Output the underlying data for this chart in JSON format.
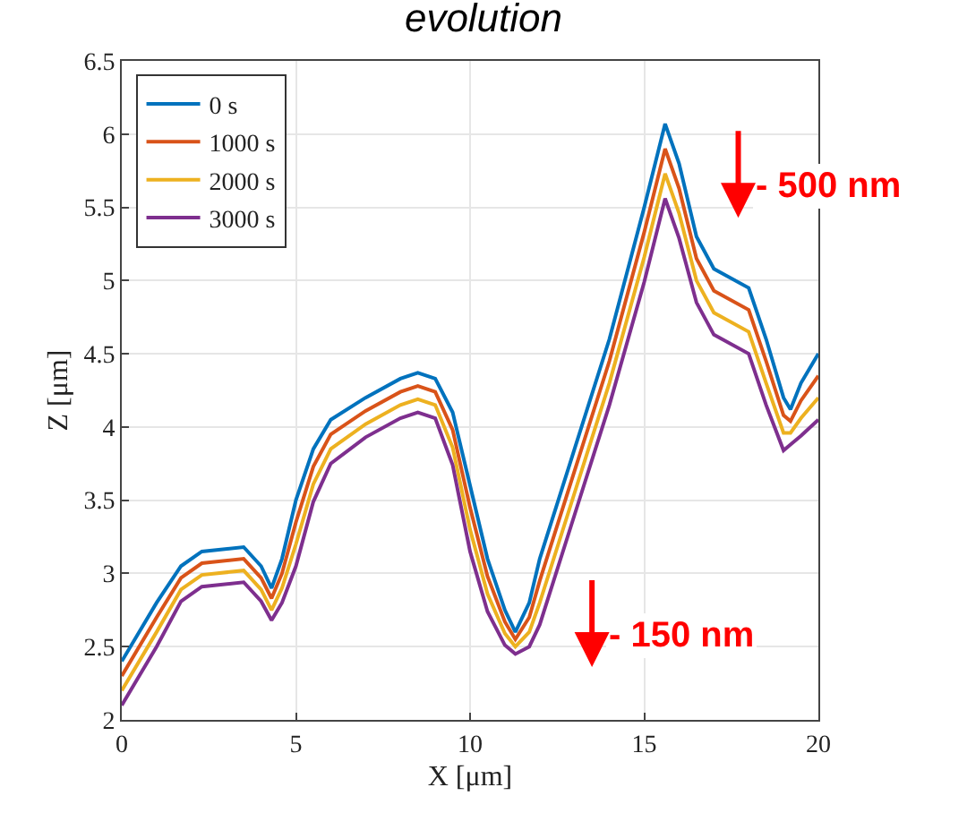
{
  "chart_data": {
    "type": "line",
    "title": "evolution",
    "xlabel": "X [μm]",
    "ylabel": "Z [μm]",
    "x": [
      0,
      1,
      1.7,
      2.3,
      3.5,
      4,
      4.3,
      4.6,
      5,
      5.5,
      6,
      7,
      8,
      8.5,
      9,
      9.5,
      10,
      10.5,
      11,
      11.3,
      11.7,
      12,
      13,
      14,
      15,
      15.6,
      16,
      16.5,
      17,
      18,
      18.5,
      19,
      19.2,
      19.5,
      20
    ],
    "series": [
      {
        "name": "0 s",
        "color": "#0072bd",
        "values": [
          2.4,
          2.8,
          3.05,
          3.15,
          3.18,
          3.05,
          2.9,
          3.1,
          3.5,
          3.85,
          4.05,
          4.2,
          4.33,
          4.37,
          4.33,
          4.1,
          3.6,
          3.1,
          2.75,
          2.6,
          2.8,
          3.1,
          3.85,
          4.6,
          5.5,
          6.07,
          5.8,
          5.3,
          5.08,
          4.95,
          4.6,
          4.2,
          4.12,
          4.3,
          4.5
        ]
      },
      {
        "name": "1000 s",
        "color": "#d95319",
        "values": [
          2.3,
          2.7,
          2.97,
          3.07,
          3.1,
          2.97,
          2.83,
          3.0,
          3.35,
          3.73,
          3.95,
          4.11,
          4.24,
          4.28,
          4.24,
          3.98,
          3.45,
          2.98,
          2.67,
          2.55,
          2.7,
          2.95,
          3.7,
          4.45,
          5.33,
          5.9,
          5.63,
          5.15,
          4.93,
          4.8,
          4.45,
          4.08,
          4.04,
          4.18,
          4.35
        ]
      },
      {
        "name": "2000 s",
        "color": "#edb120",
        "values": [
          2.2,
          2.6,
          2.89,
          2.99,
          3.02,
          2.89,
          2.75,
          2.9,
          3.2,
          3.61,
          3.85,
          4.02,
          4.15,
          4.19,
          4.15,
          3.86,
          3.3,
          2.86,
          2.59,
          2.5,
          2.6,
          2.8,
          3.55,
          4.3,
          5.16,
          5.73,
          5.46,
          5.0,
          4.78,
          4.65,
          4.3,
          3.96,
          3.96,
          4.06,
          4.2
        ]
      },
      {
        "name": "3000 s",
        "color": "#7e2f8e",
        "values": [
          2.1,
          2.5,
          2.81,
          2.91,
          2.94,
          2.81,
          2.68,
          2.8,
          3.05,
          3.49,
          3.75,
          3.93,
          4.06,
          4.1,
          4.06,
          3.74,
          3.15,
          2.74,
          2.51,
          2.45,
          2.5,
          2.65,
          3.4,
          4.15,
          4.99,
          5.56,
          5.29,
          4.85,
          4.63,
          4.5,
          4.15,
          3.84,
          3.88,
          3.94,
          4.05
        ]
      }
    ],
    "xlim": [
      0,
      20
    ],
    "xticks": [
      0,
      5,
      10,
      15,
      20
    ],
    "ylim": [
      2,
      6.5
    ],
    "yticks": [
      2,
      2.5,
      3,
      3.5,
      4,
      4.5,
      5,
      5.5,
      6,
      6.5
    ],
    "annotations": [
      "- 500 nm",
      "- 150 nm"
    ],
    "grid": true,
    "legend": "top left",
    "marker": "none",
    "line_style": "solid"
  }
}
